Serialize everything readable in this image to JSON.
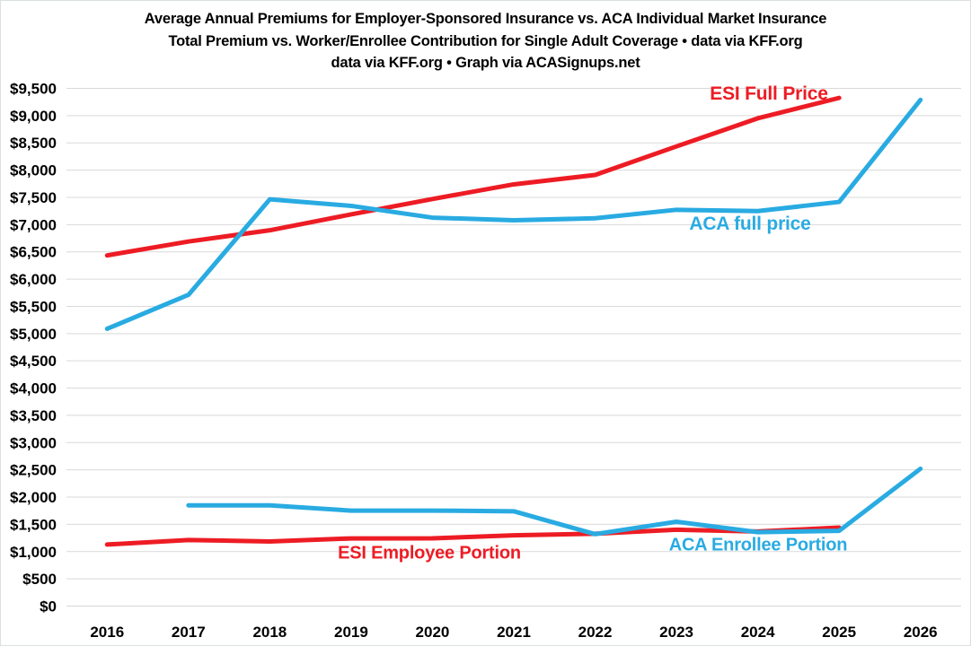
{
  "title": {
    "line1": "Average Annual Premiums for Employer-Sponsored Insurance vs. ACA Individual Market Insurance",
    "line2": "Total Premium vs. Worker/Enrollee Contribution for Single Adult Coverage • data via KFF.org",
    "line3": "data via KFF.org • Graph via ACASignups.net"
  },
  "colors": {
    "esi_red": "#ED1C24",
    "aca_blue": "#29ABE2",
    "gridline": "#D9D9D9",
    "axis_text": "#000000",
    "background": "#FFFFFF"
  },
  "chart_data": {
    "type": "line",
    "x": [
      "2016",
      "2017",
      "2018",
      "2019",
      "2020",
      "2021",
      "2022",
      "2023",
      "2024",
      "2025",
      "2026"
    ],
    "ylim": [
      0,
      9500
    ],
    "ytick_step": 500,
    "ytick_prefix": "$",
    "grid": true,
    "legend": "inline-labels",
    "series": [
      {
        "name": "ESI Full Price",
        "color": "#ED1C24",
        "values": [
          6435,
          6690,
          6896,
          7188,
          7470,
          7739,
          7911,
          8435,
          8951,
          9325,
          null
        ]
      },
      {
        "name": "ACA full price",
        "color": "#29ABE2",
        "values": [
          5088,
          5712,
          7464,
          7344,
          7128,
          7080,
          7116,
          7272,
          7248,
          7416,
          9288
        ]
      },
      {
        "name": "ESI Employee Portion",
        "color": "#ED1C24",
        "values": [
          1129,
          1213,
          1186,
          1242,
          1243,
          1299,
          1327,
          1401,
          1368,
          1440,
          null
        ]
      },
      {
        "name": "ACA Enrollee Portion",
        "color": "#29ABE2",
        "values": [
          null,
          1848,
          1848,
          1752,
          1752,
          1740,
          1320,
          1548,
          1356,
          1380,
          2520
        ]
      }
    ]
  }
}
